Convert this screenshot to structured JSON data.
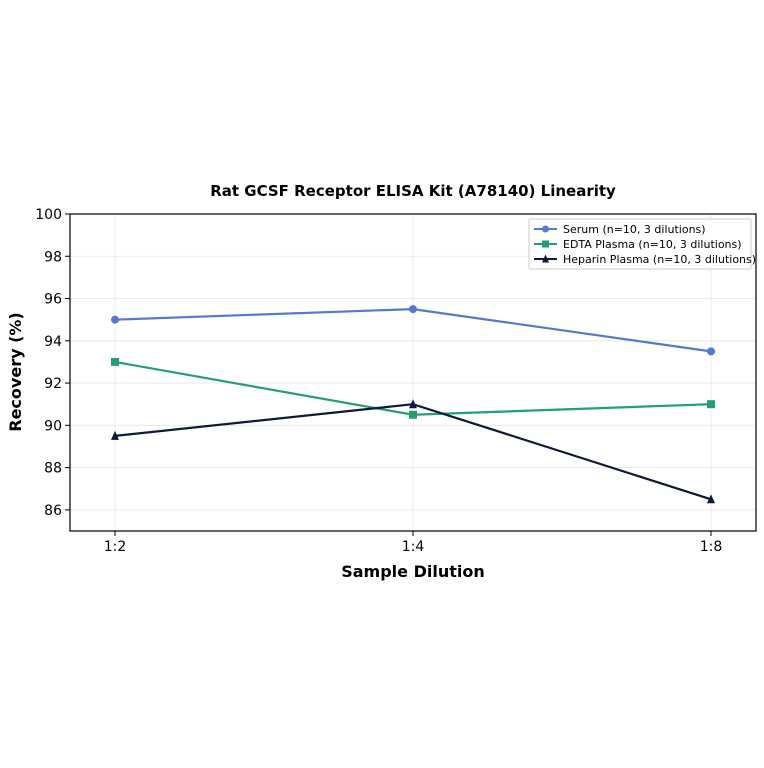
{
  "chart_data": {
    "type": "line",
    "title": "Rat GCSF Receptor ELISA Kit (A78140) Linearity",
    "xlabel": "Sample Dilution",
    "ylabel": "Recovery (%)",
    "categories": [
      "1:2",
      "1:4",
      "1:8"
    ],
    "ylim": [
      85,
      100
    ],
    "yticks": [
      86,
      88,
      90,
      92,
      94,
      96,
      98,
      100
    ],
    "grid": true,
    "legend_position": "top-right",
    "series": [
      {
        "name": "Serum (n=10, 3 dilutions)",
        "values": [
          95.0,
          95.5,
          93.5
        ],
        "color": "#5578d4",
        "marker": "circle"
      },
      {
        "name": "EDTA Plasma (n=10, 3 dilutions)",
        "values": [
          93.0,
          90.5,
          91.0
        ],
        "color": "#22a071",
        "marker": "square"
      },
      {
        "name": "Heparin Plasma (n=10, 3 dilutions)",
        "values": [
          89.5,
          91.0,
          86.5
        ],
        "color": "#0f1a3a",
        "marker": "triangle"
      }
    ]
  }
}
